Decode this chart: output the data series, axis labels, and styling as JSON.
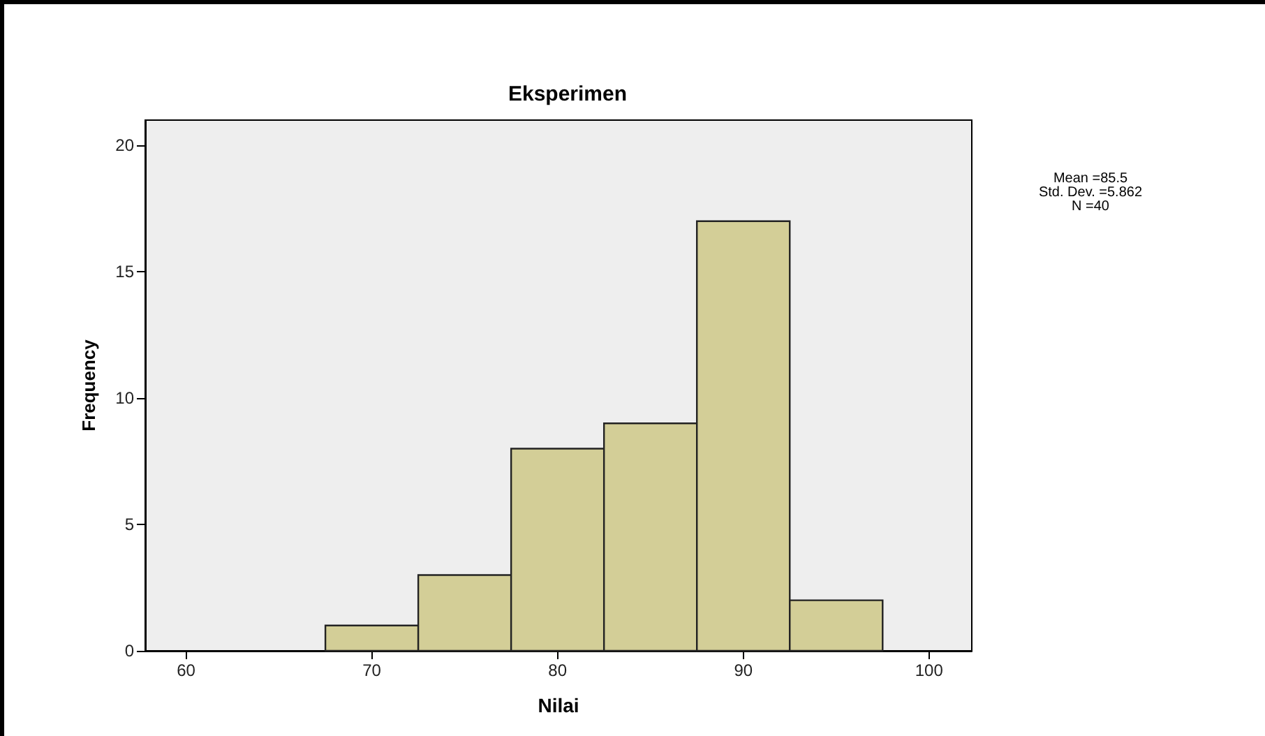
{
  "chart_data": {
    "type": "histogram",
    "title": "Eksperimen",
    "xlabel": "Nilai",
    "ylabel": "Frequency",
    "bins": [
      67.5,
      72.5,
      77.5,
      82.5,
      87.5,
      92.5,
      97.5
    ],
    "values": [
      1,
      3,
      8,
      9,
      17,
      2
    ],
    "color": "#d3ce97",
    "xlim": [
      57.8,
      102.3
    ],
    "xticks": [
      60,
      70,
      80,
      90,
      100
    ],
    "ylim": [
      0,
      21
    ],
    "yticks": [
      0,
      5,
      10,
      15,
      20
    ],
    "annotations": [
      "Mean =85.5",
      "Std. Dev. =5.862",
      "N =40"
    ]
  }
}
